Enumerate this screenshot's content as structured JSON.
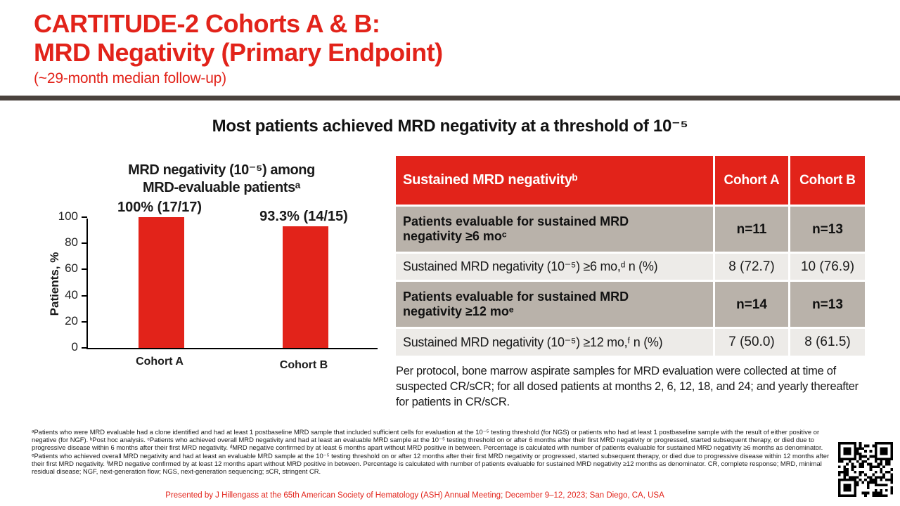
{
  "header": {
    "title_line1": "CARTITUDE-2 Cohorts A & B:",
    "title_line2": "MRD Negativity (Primary Endpoint)",
    "subtitle": "(~29-month median follow-up)"
  },
  "headline": "Most patients achieved MRD negativity at a threshold of 10⁻⁵",
  "chart_data": {
    "type": "bar",
    "title_line1": "MRD negativity (10⁻⁵) among",
    "title_line2": "MRD-evaluable patientsᵃ",
    "ylabel": "Patients, %",
    "ylim": [
      0,
      100
    ],
    "yticks": [
      0,
      20,
      40,
      60,
      80,
      100
    ],
    "grid": false,
    "categories": [
      "Cohort A",
      "Cohort B"
    ],
    "values": [
      100,
      93.3
    ],
    "bar_labels": [
      "100% (17/17)",
      "93.3% (14/15)"
    ],
    "bar_color": "#e2231a"
  },
  "table": {
    "header": {
      "label": "Sustained MRD negativityᵇ",
      "cohort_a": "Cohort A",
      "cohort_b": "Cohort B"
    },
    "rows": [
      {
        "label": "Patients evaluable for sustained MRD negativity ≥6 moᶜ",
        "cohort_a": "n=11",
        "cohort_b": "n=13",
        "emphasis": true
      },
      {
        "label": "Sustained MRD negativity (10⁻⁵) ≥6 mo,ᵈ n (%)",
        "cohort_a": "8 (72.7)",
        "cohort_b": "10 (76.9)",
        "emphasis": false
      },
      {
        "label": "Patients evaluable for sustained MRD negativity ≥12 moᵉ",
        "cohort_a": "n=14",
        "cohort_b": "n=13",
        "emphasis": true
      },
      {
        "label": "Sustained MRD negativity (10⁻⁵) ≥12 mo,ᶠ n (%)",
        "cohort_a": "7 (50.0)",
        "cohort_b": "8 (61.5)",
        "emphasis": false
      }
    ]
  },
  "note": "Per protocol, bone marrow aspirate samples for MRD evaluation were collected at time of suspected CR/sCR; for all dosed patients at months 2, 6, 12, 18, and 24; and yearly thereafter for patients in CR/sCR.",
  "footnotes": "ᵃPatients who were MRD evaluable had a clone identified and had at least 1 postbaseline MRD sample that included sufficient cells for evaluation at the 10⁻⁵ testing threshold (for NGS) or patients who had at least 1 postbaseline sample with the result of either positive or negative (for NGF). ᵇPost hoc analysis. ᶜPatients who achieved overall MRD negativity and had at least an evaluable MRD sample at the 10⁻⁵ testing threshold on or after 6 months after their first MRD negativity or progressed, started subsequent therapy, or died due to progressive disease within 6 months after their first MRD negativity. ᵈMRD negative confirmed by at least 6 months apart without MRD positive in between. Percentage is calculated with number of patients evaluable for sustained MRD negativity ≥6 months as denominator. ᵉPatients who achieved overall MRD negativity and had at least an evaluable MRD sample at the 10⁻⁵ testing threshold on or after 12 months after their first MRD negativity or progressed, started subsequent therapy, or died due to progressive disease within 12 months after their first MRD negativity. ᶠMRD negative confirmed by at least 12 months apart without MRD positive in between. Percentage is calculated with number of patients evaluable for sustained MRD negativity ≥12 months as denominator. CR, complete response; MRD, minimal residual disease; NGF, next-generation flow; NGS, next-generation sequencing; sCR, stringent CR.",
  "presenter": "Presented by J Hillengass at the 65th American Society of Hematology (ASH) Annual Meeting; December 9–12, 2023; San Diego, CA, USA",
  "colors": {
    "brand_red": "#e2231a",
    "divider_bar": "#4a423d",
    "table_row_dark": "#b9b2aa",
    "table_row_light": "#edebe8",
    "text_dark": "#1a1a1a"
  },
  "icons": {
    "qr_code": "qr-code"
  }
}
